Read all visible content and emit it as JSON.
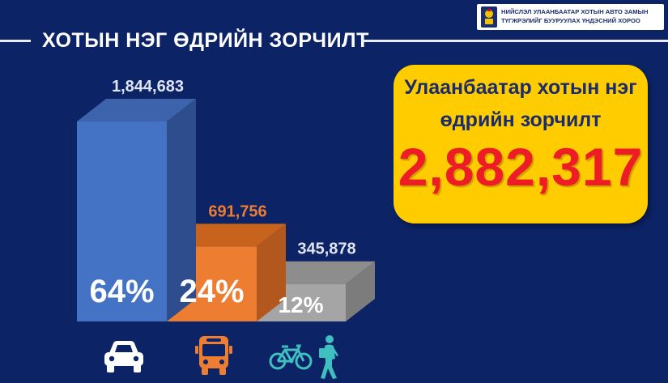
{
  "header": {
    "title": "ХОТЫН НЭГ ӨДРИЙН ЗОРЧИЛТ",
    "org_line1": "НИЙСЛЭЛ УЛААНБААТАР ХОТЫН АВТО ЗАМЫН",
    "org_line2": "ТҮГЖРЭЛИЙГ БУУРУУЛАХ ҮНДЭСНИЙ ХОРОО"
  },
  "summary": {
    "line1": "Улаанбаатар хотын нэг",
    "line2": "өдрийн зорчилт",
    "total": "2,882,317"
  },
  "chart_data": {
    "type": "bar",
    "categories": [
      "car",
      "bus",
      "bicycle-walk"
    ],
    "values": [
      1844683,
      691756,
      345878
    ],
    "value_labels": [
      "1,844,683",
      "691,756",
      "345,878"
    ],
    "percent_labels": [
      "64%",
      "24%",
      "12%"
    ],
    "colors": {
      "front": [
        "#4472c4",
        "#ed7d31",
        "#a5a5a5"
      ],
      "side": [
        "#2e4d8c",
        "#b2571e",
        "#7c7c7c"
      ],
      "top": [
        "#3d63ad",
        "#c8631e",
        "#8d8d8d"
      ],
      "value_label": [
        "#dfe5f2",
        "#ed7d31",
        "#dfe5f2"
      ]
    },
    "icons": [
      "car-icon",
      "bus-icon",
      "bicycle-icon",
      "pedestrian-icon"
    ],
    "grid": false
  },
  "colors": {
    "background": "#0c2366",
    "summary_box": "#ffcc00",
    "total_text": "#ee1c24",
    "icon_white": "#ffffff",
    "icon_orange": "#ed7d31",
    "icon_teal": "#3fbfbf"
  }
}
